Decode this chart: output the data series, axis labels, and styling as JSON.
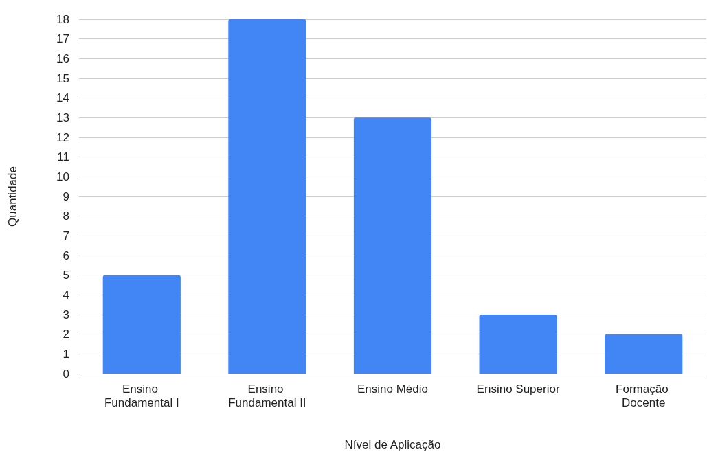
{
  "chart_data": {
    "type": "bar",
    "xlabel": "Nível de Aplicação",
    "ylabel": "Quantidade",
    "categories": [
      "Ensino Fundamental I",
      "Ensino Fundamental II",
      "Ensino Médio",
      "Ensino Superior",
      "Formação Docente"
    ],
    "values": [
      5,
      18,
      13,
      3,
      2
    ],
    "color": "#4285f4",
    "ylim": [
      0,
      18
    ],
    "yticks": [
      0,
      1,
      2,
      3,
      4,
      5,
      6,
      7,
      8,
      9,
      10,
      11,
      12,
      13,
      14,
      15,
      16,
      17,
      18
    ],
    "grid": "y"
  }
}
